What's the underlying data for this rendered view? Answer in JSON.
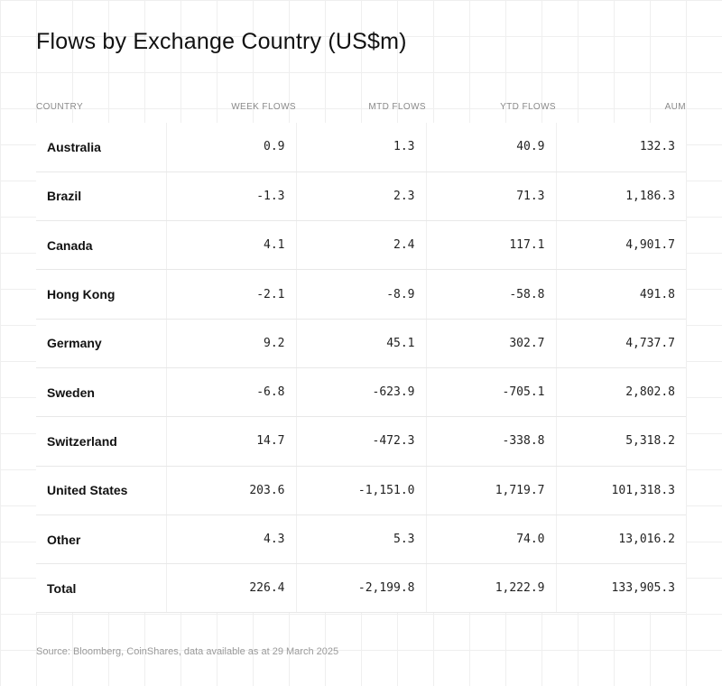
{
  "title": "Flows by Exchange Country (US$m)",
  "source": "Source: Bloomberg, CoinShares, data available as at 29 March 2025",
  "chart_data": {
    "type": "table",
    "title": "Flows by Exchange Country (US$m)",
    "columns": [
      "COUNTRY",
      "WEEK FLOWS",
      "MTD FLOWS",
      "YTD FLOWS",
      "AUM"
    ],
    "rows": [
      [
        "Australia",
        "0.9",
        "1.3",
        "40.9",
        "132.3"
      ],
      [
        "Brazil",
        "-1.3",
        "2.3",
        "71.3",
        "1,186.3"
      ],
      [
        "Canada",
        "4.1",
        "2.4",
        "117.1",
        "4,901.7"
      ],
      [
        "Hong Kong",
        "-2.1",
        "-8.9",
        "-58.8",
        "491.8"
      ],
      [
        "Germany",
        "9.2",
        "45.1",
        "302.7",
        "4,737.7"
      ],
      [
        "Sweden",
        "-6.8",
        "-623.9",
        "-705.1",
        "2,802.8"
      ],
      [
        "Switzerland",
        "14.7",
        "-472.3",
        "-338.8",
        "5,318.2"
      ],
      [
        "United States",
        "203.6",
        "-1,151.0",
        "1,719.7",
        "101,318.3"
      ],
      [
        "Other",
        "4.3",
        "5.3",
        "74.0",
        "13,016.2"
      ],
      [
        "Total",
        "226.4",
        "-2,199.8",
        "1,222.9",
        "133,905.3"
      ]
    ]
  }
}
